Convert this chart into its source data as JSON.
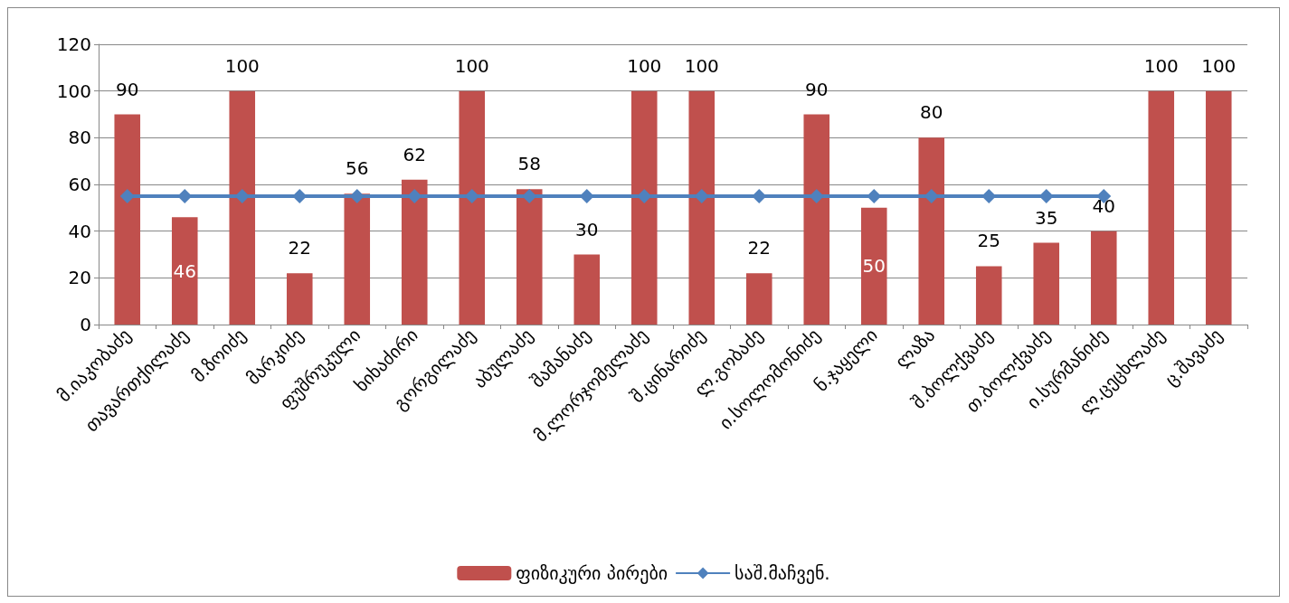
{
  "chart_data": {
    "type": "bar",
    "categories": [
      "მ.იაკობაძე",
      "თავართქილაძე",
      "მ.ზოიძე",
      "მარკიძე",
      "ფუშრუკული",
      "ხიხაძირი",
      "გორგილაძე",
      "აბულაძე",
      "შამანაძე",
      "მ.ლორჯომელაძე",
      "შ.ცინარიძე",
      "ლ.გობაძე",
      "ი.სოლომონიძე",
      "ნ.ჯაყელი",
      "ლაზა",
      "შ.ბოლქვაძე",
      "თ.ბოლქვაძე",
      "ი.სურმანიძე",
      "ლ.ცეცხლაძე",
      "ც.შავაძე"
    ],
    "series": [
      {
        "name": "ფიზიკური პირები",
        "color": "#c0504d",
        "values": [
          90,
          46,
          100,
          22,
          56,
          62,
          100,
          58,
          30,
          100,
          100,
          22,
          90,
          50,
          80,
          25,
          35,
          40,
          100,
          100
        ],
        "data_labels": true
      },
      {
        "name": "საშ.მაჩვენ.",
        "type": "line",
        "color": "#4f81bd",
        "marker": "diamond",
        "values": [
          55,
          55,
          55,
          55,
          55,
          55,
          55,
          55,
          55,
          55,
          55,
          55,
          55,
          55,
          55,
          55,
          55,
          55,
          null,
          null
        ]
      }
    ],
    "ylim": [
      0,
      120
    ],
    "yticks": [
      0,
      20,
      40,
      60,
      80,
      100,
      120
    ],
    "grid": "y",
    "legend": "bottom"
  }
}
